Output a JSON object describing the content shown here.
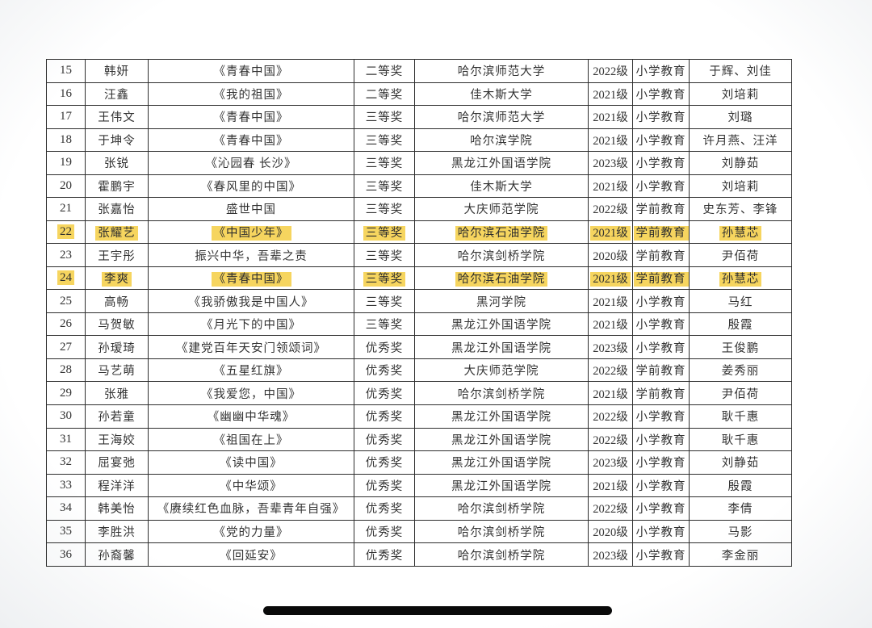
{
  "colors": {
    "highlight": "#f6d55f",
    "table_border": "#2e2e2e",
    "text": "#333333",
    "home_indicator": "#0a0a0a"
  },
  "table": {
    "rows": [
      {
        "num": "15",
        "name": "韩妍",
        "work": "《青春中国》",
        "award": "二等奖",
        "school": "哈尔滨师范大学",
        "grade": "2022级",
        "major": "小学教育",
        "teachers": "于辉、刘佳",
        "highlighted": false
      },
      {
        "num": "16",
        "name": "汪鑫",
        "work": "《我的祖国》",
        "award": "二等奖",
        "school": "佳木斯大学",
        "grade": "2021级",
        "major": "小学教育",
        "teachers": "刘培莉",
        "highlighted": false
      },
      {
        "num": "17",
        "name": "王伟文",
        "work": "《青春中国》",
        "award": "三等奖",
        "school": "哈尔滨师范大学",
        "grade": "2021级",
        "major": "小学教育",
        "teachers": "刘璐",
        "highlighted": false
      },
      {
        "num": "18",
        "name": "于坤令",
        "work": "《青春中国》",
        "award": "三等奖",
        "school": "哈尔滨学院",
        "grade": "2021级",
        "major": "小学教育",
        "teachers": "许月燕、汪洋",
        "highlighted": false
      },
      {
        "num": "19",
        "name": "张锐",
        "work": "《沁园春 长沙》",
        "award": "三等奖",
        "school": "黑龙江外国语学院",
        "grade": "2023级",
        "major": "小学教育",
        "teachers": "刘静茹",
        "highlighted": false
      },
      {
        "num": "20",
        "name": "霍鹏宇",
        "work": "《春风里的中国》",
        "award": "三等奖",
        "school": "佳木斯大学",
        "grade": "2021级",
        "major": "小学教育",
        "teachers": "刘培莉",
        "highlighted": false
      },
      {
        "num": "21",
        "name": "张嘉怡",
        "work": "盛世中国",
        "award": "三等奖",
        "school": "大庆师范学院",
        "grade": "2022级",
        "major": "学前教育",
        "teachers": "史东芳、李锋",
        "highlighted": false
      },
      {
        "num": "22",
        "name": "张耀艺",
        "work": "《中国少年》",
        "award": "三等奖",
        "school": "哈尔滨石油学院",
        "grade": "2021级",
        "major": "学前教育",
        "teachers": "孙慧芯",
        "highlighted": true
      },
      {
        "num": "23",
        "name": "王宇彤",
        "work": "振兴中华，吾辈之责",
        "award": "三等奖",
        "school": "哈尔滨剑桥学院",
        "grade": "2020级",
        "major": "学前教育",
        "teachers": "尹佰荷",
        "highlighted": false
      },
      {
        "num": "24",
        "name": "李爽",
        "work": "《青春中国》",
        "award": "三等奖",
        "school": "哈尔滨石油学院",
        "grade": "2021级",
        "major": "学前教育",
        "teachers": "孙慧芯",
        "highlighted": true
      },
      {
        "num": "25",
        "name": "高畅",
        "work": "《我骄傲我是中国人》",
        "award": "三等奖",
        "school": "黑河学院",
        "grade": "2021级",
        "major": "小学教育",
        "teachers": "马红",
        "highlighted": false
      },
      {
        "num": "26",
        "name": "马贺敏",
        "work": "《月光下的中国》",
        "award": "三等奖",
        "school": "黑龙江外国语学院",
        "grade": "2021级",
        "major": "小学教育",
        "teachers": "殷霞",
        "highlighted": false
      },
      {
        "num": "27",
        "name": "孙瑷琦",
        "work": "《建党百年天安门领颂词》",
        "award": "优秀奖",
        "school": "黑龙江外国语学院",
        "grade": "2023级",
        "major": "小学教育",
        "teachers": "王俊鹏",
        "highlighted": false
      },
      {
        "num": "28",
        "name": "马艺萌",
        "work": "《五星红旗》",
        "award": "优秀奖",
        "school": "大庆师范学院",
        "grade": "2022级",
        "major": "学前教育",
        "teachers": "姜秀丽",
        "highlighted": false
      },
      {
        "num": "29",
        "name": "张雅",
        "work": "《我爱您，中国》",
        "award": "优秀奖",
        "school": "哈尔滨剑桥学院",
        "grade": "2021级",
        "major": "学前教育",
        "teachers": "尹佰荷",
        "highlighted": false
      },
      {
        "num": "30",
        "name": "孙若童",
        "work": "《幽幽中华魂》",
        "award": "优秀奖",
        "school": "黑龙江外国语学院",
        "grade": "2022级",
        "major": "小学教育",
        "teachers": "耿千惠",
        "highlighted": false
      },
      {
        "num": "31",
        "name": "王海姣",
        "work": "《祖国在上》",
        "award": "优秀奖",
        "school": "黑龙江外国语学院",
        "grade": "2022级",
        "major": "小学教育",
        "teachers": "耿千惠",
        "highlighted": false
      },
      {
        "num": "32",
        "name": "屈宴弛",
        "work": "《读中国》",
        "award": "优秀奖",
        "school": "黑龙江外国语学院",
        "grade": "2023级",
        "major": "小学教育",
        "teachers": "刘静茹",
        "highlighted": false
      },
      {
        "num": "33",
        "name": "程洋洋",
        "work": "《中华颂》",
        "award": "优秀奖",
        "school": "黑龙江外国语学院",
        "grade": "2021级",
        "major": "小学教育",
        "teachers": "殷霞",
        "highlighted": false
      },
      {
        "num": "34",
        "name": "韩美怡",
        "work": "《赓续红色血脉，吾辈青年自强》",
        "award": "优秀奖",
        "school": "哈尔滨剑桥学院",
        "grade": "2022级",
        "major": "小学教育",
        "teachers": "李倩",
        "highlighted": false
      },
      {
        "num": "35",
        "name": "李胜洪",
        "work": "《党的力量》",
        "award": "优秀奖",
        "school": "哈尔滨剑桥学院",
        "grade": "2020级",
        "major": "小学教育",
        "teachers": "马影",
        "highlighted": false
      },
      {
        "num": "36",
        "name": "孙裔馨",
        "work": "《回延安》",
        "award": "优秀奖",
        "school": "哈尔滨剑桥学院",
        "grade": "2023级",
        "major": "小学教育",
        "teachers": "李金丽",
        "highlighted": false
      }
    ]
  }
}
